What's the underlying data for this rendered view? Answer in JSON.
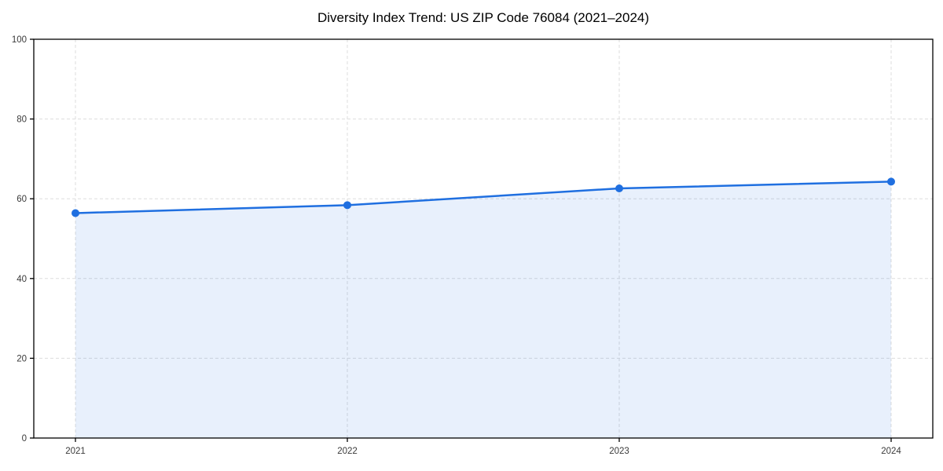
{
  "chart_data": {
    "type": "line",
    "title": "Diversity Index Trend: US ZIP Code 76084 (2021–2024)",
    "categories": [
      "2021",
      "2022",
      "2023",
      "2024"
    ],
    "values": [
      56.4,
      58.4,
      62.6,
      64.3
    ],
    "xlabel": "",
    "ylabel": "",
    "ylim": [
      0,
      100
    ],
    "yticks": [
      0,
      20,
      40,
      60,
      80,
      100
    ],
    "grid": true,
    "grid_style": "dashed",
    "legend_position": "none",
    "marker": "circle",
    "area_fill": true,
    "colors": {
      "line": "#1f6fe0",
      "marker": "#1f6fe0",
      "fill": "#1f6fe0",
      "fill_opacity": 0.1,
      "grid": "#dddddd",
      "spine": "#000000",
      "tick_label": "#3a3a3a",
      "title": "#000000",
      "background": "#ffffff"
    }
  }
}
